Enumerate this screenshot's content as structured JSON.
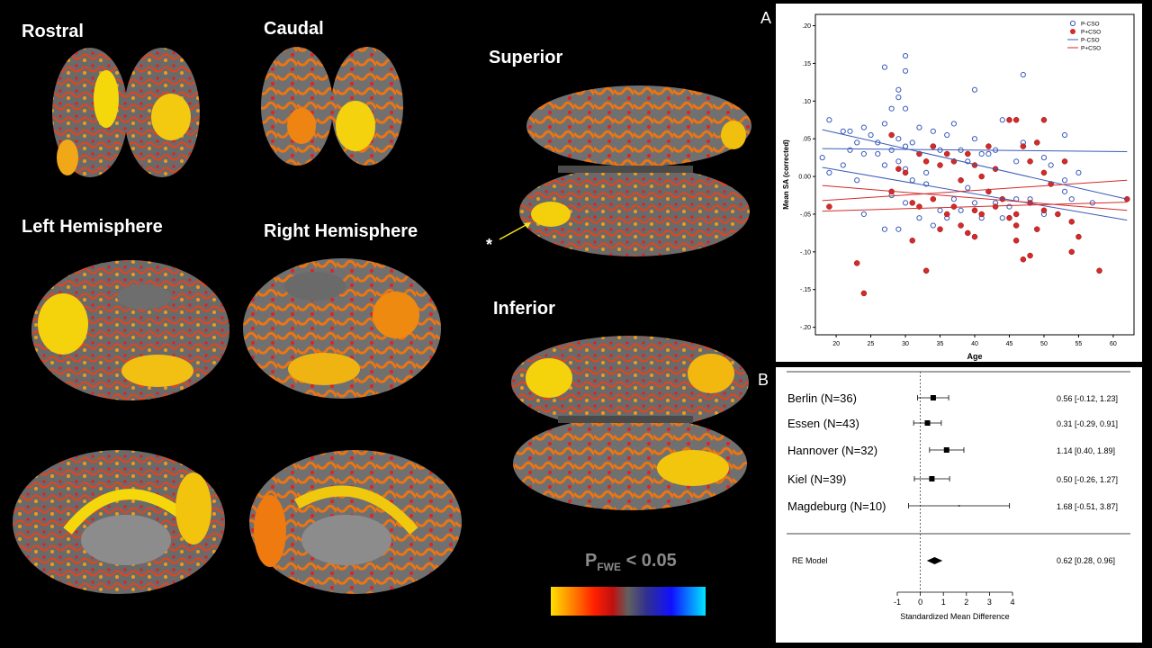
{
  "views": {
    "rostral": "Rostral",
    "caudal": "Caudal",
    "left": "Left Hemisphere",
    "right": "Right Hemisphere",
    "superior": "Superior",
    "inferior": "Inferior",
    "asterisk": "*"
  },
  "colorbar": {
    "label_main": "P",
    "label_sub": "FWE",
    "label_rest": " < 0.05"
  },
  "panel_a": {
    "letter": "A",
    "chart_data": {
      "type": "scatter",
      "xlabel": "Age",
      "ylabel": "Mean SA (corrected)",
      "xlim": [
        17,
        63
      ],
      "ylim": [
        -0.21,
        0.215
      ],
      "xticks": [
        "20",
        "25",
        "30",
        "35",
        "40",
        "45",
        "50",
        "55",
        "60"
      ],
      "yticks": [
        ".20",
        ".15",
        ".10",
        ".05",
        "0.00",
        "-.05",
        "-.10",
        "-.15",
        "-.20"
      ],
      "legend": [
        "P-CSO",
        "P+CSO",
        "P-CSO",
        "P+CSO"
      ],
      "legend_position": "top-right",
      "colors": {
        "pcso_minus": "#3a5bb8",
        "pcso_plus": "#d42a2a"
      },
      "series": [
        {
          "name": "P-CSO",
          "marker": "open-circle",
          "points": [
            [
              18,
              0.025
            ],
            [
              19,
              0.075
            ],
            [
              19,
              0.005
            ],
            [
              21,
              0.06
            ],
            [
              21,
              0.015
            ],
            [
              22,
              0.035
            ],
            [
              22,
              0.06
            ],
            [
              23,
              -0.005
            ],
            [
              23,
              0.045
            ],
            [
              24,
              0.065
            ],
            [
              24,
              0.03
            ],
            [
              24,
              -0.05
            ],
            [
              25,
              0.055
            ],
            [
              26,
              0.03
            ],
            [
              26,
              0.045
            ],
            [
              27,
              0.145
            ],
            [
              27,
              0.07
            ],
            [
              27,
              0.015
            ],
            [
              27,
              -0.07
            ],
            [
              28,
              0.09
            ],
            [
              28,
              0.035
            ],
            [
              28,
              -0.025
            ],
            [
              29,
              0.115
            ],
            [
              29,
              0.105
            ],
            [
              29,
              0.05
            ],
            [
              29,
              0.02
            ],
            [
              29,
              -0.07
            ],
            [
              30,
              0.16
            ],
            [
              30,
              0.14
            ],
            [
              30,
              0.09
            ],
            [
              30,
              0.04
            ],
            [
              30,
              0.01
            ],
            [
              30,
              -0.035
            ],
            [
              31,
              0.045
            ],
            [
              31,
              -0.005
            ],
            [
              32,
              0.03
            ],
            [
              32,
              0.065
            ],
            [
              32,
              -0.055
            ],
            [
              33,
              0.005
            ],
            [
              33,
              -0.01
            ],
            [
              34,
              0.06
            ],
            [
              34,
              0.04
            ],
            [
              34,
              -0.065
            ],
            [
              35,
              0.035
            ],
            [
              35,
              -0.045
            ],
            [
              36,
              0.055
            ],
            [
              36,
              -0.055
            ],
            [
              37,
              0.07
            ],
            [
              37,
              0.02
            ],
            [
              37,
              -0.03
            ],
            [
              38,
              0.035
            ],
            [
              38,
              -0.045
            ],
            [
              39,
              0.02
            ],
            [
              39,
              -0.015
            ],
            [
              40,
              0.05
            ],
            [
              40,
              0.115
            ],
            [
              40,
              -0.035
            ],
            [
              41,
              0.03
            ],
            [
              41,
              -0.055
            ],
            [
              42,
              0.03
            ],
            [
              43,
              0.035
            ],
            [
              43,
              -0.035
            ],
            [
              44,
              0.075
            ],
            [
              44,
              -0.055
            ],
            [
              45,
              -0.04
            ],
            [
              46,
              0.02
            ],
            [
              46,
              -0.03
            ],
            [
              47,
              0.135
            ],
            [
              47,
              0.045
            ],
            [
              48,
              -0.03
            ],
            [
              50,
              -0.05
            ],
            [
              50,
              0.025
            ],
            [
              51,
              -0.01
            ],
            [
              51,
              0.015
            ],
            [
              53,
              0.055
            ],
            [
              53,
              -0.005
            ],
            [
              53,
              -0.02
            ],
            [
              54,
              -0.03
            ],
            [
              55,
              0.005
            ],
            [
              57,
              -0.035
            ]
          ]
        },
        {
          "name": "P+CSO",
          "marker": "filled-circle",
          "points": [
            [
              19,
              -0.04
            ],
            [
              23,
              -0.115
            ],
            [
              24,
              -0.155
            ],
            [
              28,
              0.055
            ],
            [
              28,
              -0.02
            ],
            [
              29,
              0.01
            ],
            [
              30,
              0.005
            ],
            [
              31,
              -0.035
            ],
            [
              31,
              -0.085
            ],
            [
              32,
              0.03
            ],
            [
              32,
              -0.04
            ],
            [
              33,
              -0.125
            ],
            [
              33,
              0.02
            ],
            [
              34,
              0.04
            ],
            [
              34,
              -0.03
            ],
            [
              35,
              -0.07
            ],
            [
              35,
              0.015
            ],
            [
              36,
              0.03
            ],
            [
              36,
              -0.05
            ],
            [
              37,
              -0.04
            ],
            [
              37,
              0.02
            ],
            [
              38,
              -0.065
            ],
            [
              38,
              -0.005
            ],
            [
              39,
              0.03
            ],
            [
              39,
              -0.075
            ],
            [
              40,
              0.015
            ],
            [
              40,
              -0.045
            ],
            [
              40,
              -0.08
            ],
            [
              41,
              0.0
            ],
            [
              41,
              -0.05
            ],
            [
              42,
              0.04
            ],
            [
              42,
              -0.02
            ],
            [
              43,
              -0.04
            ],
            [
              43,
              0.01
            ],
            [
              44,
              -0.03
            ],
            [
              45,
              0.075
            ],
            [
              45,
              -0.055
            ],
            [
              46,
              -0.05
            ],
            [
              46,
              -0.065
            ],
            [
              46,
              -0.085
            ],
            [
              46,
              0.075
            ],
            [
              47,
              -0.11
            ],
            [
              47,
              0.04
            ],
            [
              48,
              -0.105
            ],
            [
              48,
              -0.035
            ],
            [
              48,
              0.02
            ],
            [
              49,
              -0.07
            ],
            [
              49,
              0.045
            ],
            [
              50,
              0.005
            ],
            [
              50,
              0.075
            ],
            [
              50,
              -0.045
            ],
            [
              51,
              -0.01
            ],
            [
              52,
              -0.05
            ],
            [
              53,
              0.02
            ],
            [
              54,
              -0.06
            ],
            [
              54,
              -0.1
            ],
            [
              55,
              -0.08
            ],
            [
              58,
              -0.125
            ],
            [
              62,
              -0.03
            ]
          ]
        },
        {
          "name": "P-CSO",
          "line": true,
          "segments": [
            [
              [
                18,
                0.062
              ],
              [
                62,
                -0.03
              ]
            ],
            [
              [
                18,
                0.037
              ],
              [
                62,
                0.033
              ]
            ],
            [
              [
                18,
                0.012
              ],
              [
                62,
                -0.058
              ]
            ]
          ]
        },
        {
          "name": "P+CSO",
          "line": true,
          "segments": [
            [
              [
                18,
                -0.012
              ],
              [
                62,
                -0.045
              ]
            ],
            [
              [
                18,
                -0.032
              ],
              [
                62,
                -0.005
              ]
            ],
            [
              [
                18,
                -0.046
              ],
              [
                62,
                -0.034
              ]
            ]
          ]
        }
      ]
    }
  },
  "panel_b": {
    "letter": "B",
    "chart_data": {
      "type": "forest",
      "xlabel": "Standardized Mean Difference",
      "xlim": [
        -1,
        4
      ],
      "xticks": [
        "-1",
        "0",
        "1",
        "2",
        "3",
        "4"
      ],
      "studies": [
        {
          "label": "Berlin (N=36)",
          "estimate": 0.56,
          "lower": -0.12,
          "upper": 1.23,
          "ci_text": "0.56 [-0.12, 1.23]"
        },
        {
          "label": "Essen (N=43)",
          "estimate": 0.31,
          "lower": -0.29,
          "upper": 0.91,
          "ci_text": "0.31 [-0.29, 0.91]"
        },
        {
          "label": "Hannover (N=32)",
          "estimate": 1.14,
          "lower": 0.4,
          "upper": 1.89,
          "ci_text": "1.14 [0.40, 1.89]"
        },
        {
          "label": "Kiel (N=39)",
          "estimate": 0.5,
          "lower": -0.26,
          "upper": 1.27,
          "ci_text": "0.50 [-0.26, 1.27]"
        },
        {
          "label": "Magdeburg (N=10)",
          "estimate": 1.68,
          "lower": -0.51,
          "upper": 3.87,
          "ci_text": "1.68 [-0.51, 3.87]"
        }
      ],
      "summary": {
        "label": "RE Model",
        "estimate": 0.62,
        "lower": 0.28,
        "upper": 0.96,
        "ci_text": "0.62 [0.28, 0.96]"
      }
    }
  }
}
